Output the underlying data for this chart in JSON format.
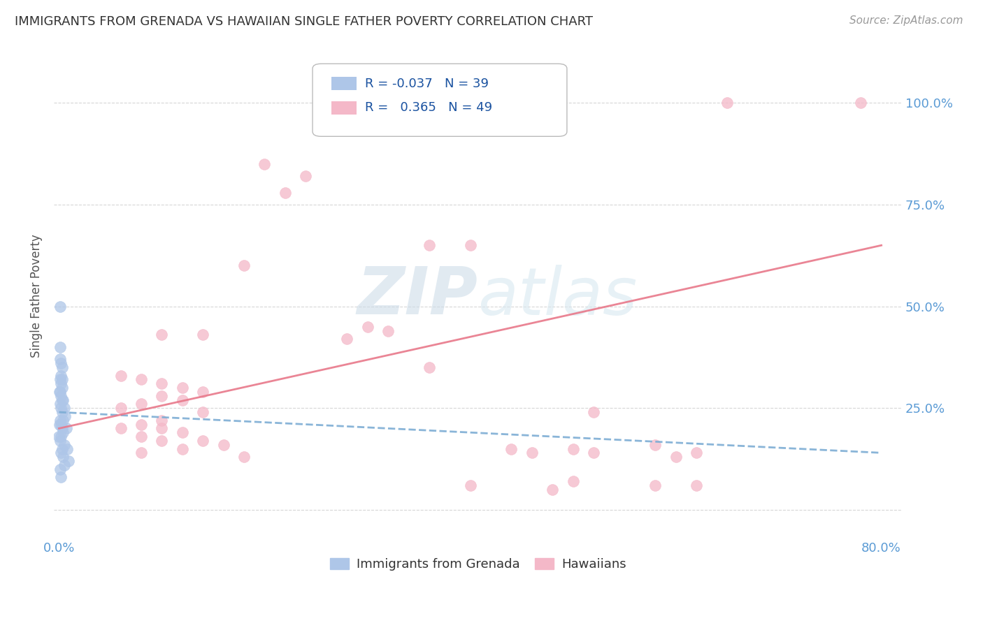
{
  "title": "IMMIGRANTS FROM GRENADA VS HAWAIIAN SINGLE FATHER POVERTY CORRELATION CHART",
  "source": "Source: ZipAtlas.com",
  "ylabel": "Single Father Poverty",
  "xlim": [
    -0.005,
    0.82
  ],
  "ylim": [
    -0.07,
    1.12
  ],
  "legend_entries": [
    {
      "label": "Immigrants from Grenada",
      "color": "#aec6e8",
      "R": "-0.037",
      "N": "39"
    },
    {
      "label": "Hawaiians",
      "color": "#f4b8c8",
      "R": "0.365",
      "N": "49"
    }
  ],
  "blue_scatter_x": [
    0.001,
    0.001,
    0.001,
    0.001,
    0.001,
    0.001,
    0.001,
    0.001,
    0.001,
    0.002,
    0.002,
    0.002,
    0.002,
    0.002,
    0.002,
    0.002,
    0.002,
    0.002,
    0.003,
    0.003,
    0.003,
    0.003,
    0.003,
    0.003,
    0.003,
    0.004,
    0.004,
    0.004,
    0.004,
    0.005,
    0.005,
    0.005,
    0.006,
    0.007,
    0.008,
    0.009,
    0.0005,
    0.0005,
    0.0
  ],
  "blue_scatter_y": [
    0.5,
    0.4,
    0.37,
    0.32,
    0.29,
    0.26,
    0.22,
    0.17,
    0.1,
    0.36,
    0.33,
    0.31,
    0.28,
    0.25,
    0.21,
    0.18,
    0.14,
    0.08,
    0.35,
    0.32,
    0.3,
    0.27,
    0.24,
    0.2,
    0.15,
    0.27,
    0.22,
    0.19,
    0.13,
    0.25,
    0.16,
    0.11,
    0.23,
    0.2,
    0.15,
    0.12,
    0.29,
    0.21,
    0.18
  ],
  "pink_scatter_x": [
    0.65,
    0.78,
    0.2,
    0.24,
    0.22,
    0.36,
    0.4,
    0.18,
    0.3,
    0.32,
    0.06,
    0.08,
    0.1,
    0.12,
    0.14,
    0.1,
    0.12,
    0.08,
    0.06,
    0.14,
    0.1,
    0.08,
    0.06,
    0.1,
    0.12,
    0.08,
    0.14,
    0.1,
    0.16,
    0.12,
    0.08,
    0.18,
    0.1,
    0.52,
    0.58,
    0.5,
    0.62,
    0.44,
    0.46,
    0.14,
    0.5,
    0.52,
    0.62,
    0.6,
    0.4,
    0.58,
    0.48,
    0.36,
    0.28
  ],
  "pink_scatter_y": [
    1.0,
    1.0,
    0.85,
    0.82,
    0.78,
    0.65,
    0.65,
    0.6,
    0.45,
    0.44,
    0.33,
    0.32,
    0.31,
    0.3,
    0.29,
    0.28,
    0.27,
    0.26,
    0.25,
    0.24,
    0.22,
    0.21,
    0.2,
    0.2,
    0.19,
    0.18,
    0.17,
    0.17,
    0.16,
    0.15,
    0.14,
    0.13,
    0.43,
    0.24,
    0.16,
    0.07,
    0.06,
    0.15,
    0.14,
    0.43,
    0.15,
    0.14,
    0.14,
    0.13,
    0.06,
    0.06,
    0.05,
    0.35,
    0.42
  ],
  "blue_line_x": [
    0.0,
    0.8
  ],
  "blue_line_y": [
    0.24,
    0.14
  ],
  "pink_line_x": [
    0.0,
    0.8
  ],
  "pink_line_y": [
    0.2,
    0.65
  ],
  "xticks": [
    0.0,
    0.2,
    0.4,
    0.6,
    0.8
  ],
  "xtick_labels": [
    "0.0%",
    "",
    "",
    "",
    "80.0%"
  ],
  "yticks": [
    0.0,
    0.25,
    0.5,
    0.75,
    1.0
  ],
  "ytick_labels_right": [
    "",
    "25.0%",
    "50.0%",
    "75.0%",
    "100.0%"
  ],
  "background_color": "#ffffff",
  "grid_color": "#cccccc",
  "axis_label_color": "#5b9bd5",
  "scatter_blue_color": "#aec6e8",
  "scatter_pink_color": "#f4b8c8",
  "trend_blue_color": "#7dadd4",
  "trend_pink_color": "#e8788a",
  "watermark_zip_color": "#cddce8",
  "watermark_atlas_color": "#d8e8f0"
}
